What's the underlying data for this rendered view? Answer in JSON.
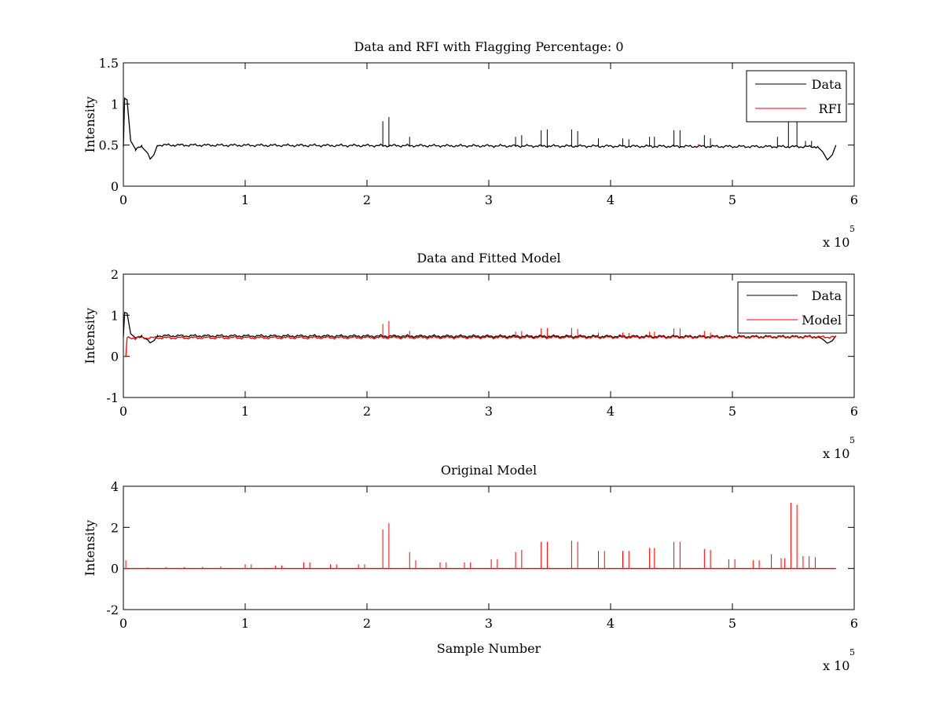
{
  "figure": {
    "background": "#ffffff"
  },
  "chart_data": [
    {
      "type": "line",
      "title": "Data and RFI with Flagging Percentage: 0",
      "xlabel": "",
      "ylabel": "Intensity",
      "xlim": [
        0,
        6
      ],
      "ylim": [
        0,
        1.5
      ],
      "xticks": [
        "0",
        "1",
        "2",
        "3",
        "4",
        "5",
        "6"
      ],
      "yticks": [
        "0",
        "0.5",
        "1",
        "1.5"
      ],
      "x_multiplier": {
        "base": "x 10",
        "exponent": "5"
      },
      "legend": {
        "placement": "top-right",
        "entries": [
          "Data",
          "RFI"
        ]
      },
      "series": [
        {
          "name": "Data",
          "color": "#000000",
          "baseline": 0.48,
          "shape": [
            [
              0,
              0.48
            ],
            [
              0.01,
              1.07
            ],
            [
              0.03,
              1.05
            ],
            [
              0.06,
              0.55
            ],
            [
              0.1,
              0.45
            ],
            [
              0.15,
              0.48
            ],
            [
              0.2,
              0.4
            ],
            [
              0.22,
              0.33
            ],
            [
              0.25,
              0.38
            ],
            [
              0.28,
              0.5
            ],
            [
              5.7,
              0.48
            ],
            [
              5.74,
              0.42
            ],
            [
              5.78,
              0.32
            ],
            [
              5.82,
              0.38
            ],
            [
              5.85,
              0.5
            ]
          ],
          "spikes": [
            [
              2.13,
              0.79
            ],
            [
              2.18,
              0.84
            ],
            [
              2.35,
              0.6
            ],
            [
              3.22,
              0.6
            ],
            [
              3.27,
              0.62
            ],
            [
              3.43,
              0.68
            ],
            [
              3.48,
              0.69
            ],
            [
              3.68,
              0.69
            ],
            [
              3.73,
              0.67
            ],
            [
              3.9,
              0.58
            ],
            [
              4.1,
              0.58
            ],
            [
              4.15,
              0.57
            ],
            [
              4.32,
              0.6
            ],
            [
              4.36,
              0.6
            ],
            [
              4.52,
              0.68
            ],
            [
              4.57,
              0.68
            ],
            [
              4.77,
              0.62
            ],
            [
              4.82,
              0.58
            ],
            [
              5.37,
              0.6
            ],
            [
              5.46,
              0.8
            ],
            [
              5.53,
              0.8
            ],
            [
              5.6,
              0.55
            ],
            [
              5.65,
              0.55
            ]
          ]
        },
        {
          "name": "RFI",
          "color": "#ff0000",
          "baseline": null,
          "shape": [],
          "spikes": [
            [
              4.72,
              0.51
            ]
          ]
        }
      ]
    },
    {
      "type": "line",
      "title": "Data and Fitted Model",
      "xlabel": "",
      "ylabel": "Intensity",
      "xlim": [
        0,
        6
      ],
      "ylim": [
        -1,
        2
      ],
      "xticks": [
        "0",
        "1",
        "2",
        "3",
        "4",
        "5",
        "6"
      ],
      "yticks": [
        "-1",
        "0",
        "1",
        "2"
      ],
      "x_multiplier": {
        "base": "x 10",
        "exponent": "5"
      },
      "legend": {
        "placement": "top-right",
        "entries": [
          "Data",
          "Model"
        ]
      },
      "series": [
        {
          "name": "Data",
          "color": "#000000",
          "baseline": 0.48,
          "shape": [
            [
              0,
              0.48
            ],
            [
              0.01,
              1.07
            ],
            [
              0.03,
              1.05
            ],
            [
              0.06,
              0.55
            ],
            [
              0.1,
              0.45
            ],
            [
              0.15,
              0.48
            ],
            [
              0.2,
              0.4
            ],
            [
              0.22,
              0.33
            ],
            [
              0.25,
              0.38
            ],
            [
              0.28,
              0.5
            ],
            [
              5.7,
              0.48
            ],
            [
              5.74,
              0.42
            ],
            [
              5.78,
              0.32
            ],
            [
              5.82,
              0.38
            ],
            [
              5.85,
              0.5
            ]
          ],
          "spikes": []
        },
        {
          "name": "Model",
          "color": "#ff0000",
          "baseline": 0.47,
          "shape": [
            [
              0,
              0
            ],
            [
              0.02,
              0
            ],
            [
              0.03,
              0.45
            ],
            [
              5.85,
              0.47
            ]
          ],
          "spikes": [
            [
              2.13,
              0.79
            ],
            [
              2.18,
              0.86
            ],
            [
              2.35,
              0.62
            ],
            [
              3.22,
              0.6
            ],
            [
              3.27,
              0.62
            ],
            [
              3.43,
              0.68
            ],
            [
              3.48,
              0.69
            ],
            [
              3.68,
              0.69
            ],
            [
              3.73,
              0.67
            ],
            [
              3.9,
              0.58
            ],
            [
              4.1,
              0.58
            ],
            [
              4.15,
              0.57
            ],
            [
              4.32,
              0.6
            ],
            [
              4.36,
              0.6
            ],
            [
              4.52,
              0.68
            ],
            [
              4.57,
              0.68
            ],
            [
              4.77,
              0.62
            ],
            [
              4.82,
              0.58
            ]
          ]
        }
      ]
    },
    {
      "type": "line",
      "title": "Original Model",
      "xlabel": "Sample Number",
      "ylabel": "Intensity",
      "xlim": [
        0,
        6
      ],
      "ylim": [
        -2,
        4
      ],
      "xticks": [
        "0",
        "1",
        "2",
        "3",
        "4",
        "5",
        "6"
      ],
      "yticks": [
        "-2",
        "0",
        "2",
        "4"
      ],
      "x_multiplier": {
        "base": "x 10",
        "exponent": "5"
      },
      "legend": null,
      "series": [
        {
          "name": "",
          "color": "#ff0000",
          "baseline": 0,
          "shape": [
            [
              0,
              0
            ],
            [
              5.85,
              0
            ]
          ],
          "spikes": [
            [
              0.02,
              0.4
            ],
            [
              0.2,
              0.05
            ],
            [
              0.35,
              0.06
            ],
            [
              0.5,
              0.06
            ],
            [
              0.65,
              0.08
            ],
            [
              0.8,
              0.1
            ],
            [
              1.0,
              0.2
            ],
            [
              1.05,
              0.2
            ],
            [
              1.25,
              0.15
            ],
            [
              1.3,
              0.15
            ],
            [
              1.48,
              0.3
            ],
            [
              1.53,
              0.3
            ],
            [
              1.7,
              0.2
            ],
            [
              1.75,
              0.2
            ],
            [
              1.93,
              0.2
            ],
            [
              1.98,
              0.2
            ],
            [
              2.13,
              1.9
            ],
            [
              2.18,
              2.2
            ],
            [
              2.35,
              0.8
            ],
            [
              2.4,
              0.4
            ],
            [
              2.6,
              0.3
            ],
            [
              2.65,
              0.3
            ],
            [
              2.8,
              0.3
            ],
            [
              2.85,
              0.3
            ],
            [
              3.02,
              0.45
            ],
            [
              3.07,
              0.45
            ],
            [
              3.22,
              0.8
            ],
            [
              3.27,
              0.9
            ],
            [
              3.43,
              1.3
            ],
            [
              3.48,
              1.3
            ],
            [
              3.68,
              1.35
            ],
            [
              3.73,
              1.3
            ],
            [
              3.9,
              0.85
            ],
            [
              3.95,
              0.85
            ],
            [
              4.1,
              0.85
            ],
            [
              4.15,
              0.85
            ],
            [
              4.32,
              1.0
            ],
            [
              4.36,
              1.0
            ],
            [
              4.52,
              1.3
            ],
            [
              4.57,
              1.3
            ],
            [
              4.77,
              0.95
            ],
            [
              4.82,
              0.9
            ],
            [
              4.97,
              0.45
            ],
            [
              5.02,
              0.45
            ],
            [
              5.17,
              0.4
            ],
            [
              5.22,
              0.4
            ],
            [
              5.32,
              0.7
            ],
            [
              5.4,
              0.5
            ],
            [
              5.43,
              0.5
            ],
            [
              5.48,
              3.2
            ],
            [
              5.53,
              3.1
            ],
            [
              5.58,
              0.6
            ],
            [
              5.63,
              0.6
            ],
            [
              5.68,
              0.55
            ]
          ]
        }
      ]
    }
  ]
}
